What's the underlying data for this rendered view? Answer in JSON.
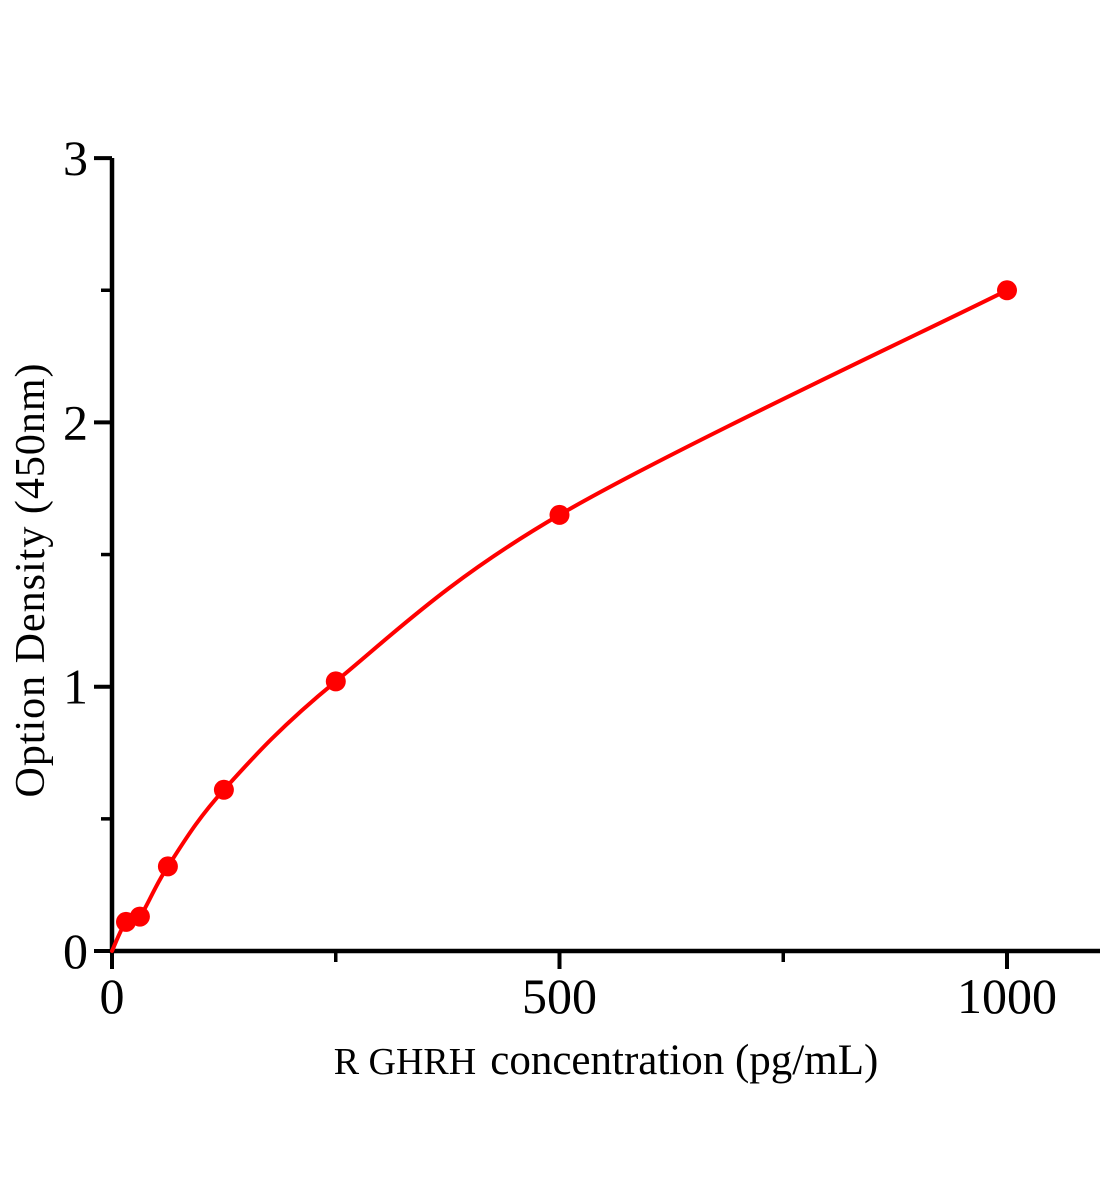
{
  "page": {
    "background_color": "#ffffff"
  },
  "chart_data": {
    "type": "line",
    "title": "",
    "xlabel": "R GHRH concentration（pg/mL）",
    "xlabel_prefix": "R GHRH",
    "xlabel_main": "concentration（pg/mL）",
    "ylabel": "Option Density（450nm）",
    "x": [
      15.6,
      31.2,
      62.5,
      125,
      250,
      500,
      1000
    ],
    "y": [
      0.11,
      0.13,
      0.32,
      0.61,
      1.02,
      1.65,
      2.5
    ],
    "curve_start": {
      "x": 0,
      "y": 0
    },
    "xlim": [
      0,
      1104
    ],
    "ylim": [
      0,
      3
    ],
    "x_ticks_major": [
      0,
      500,
      1000
    ],
    "x_ticks_minor": [
      250,
      750
    ],
    "y_ticks_major": [
      0,
      1,
      2,
      3
    ],
    "y_ticks_minor": [
      0.5,
      1.5,
      2.5
    ],
    "grid": false,
    "legend": false,
    "marker": "circle",
    "line_color": "#ff0000",
    "marker_color": "#ff0000",
    "axis_color": "#000000",
    "text_color": "#000000"
  }
}
